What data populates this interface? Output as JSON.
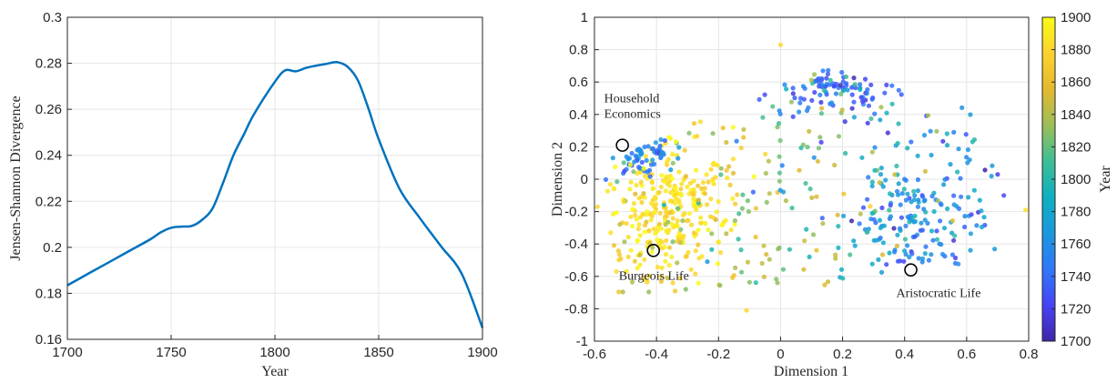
{
  "chart_data": [
    {
      "type": "line",
      "xlabel": "Year",
      "ylabel": "Jensen-Shannon Divergence",
      "xlim": [
        1700,
        1900
      ],
      "ylim": [
        0.16,
        0.3
      ],
      "xticks": [
        "1700",
        "1750",
        "1800",
        "1850",
        "1900"
      ],
      "yticks": [
        "0.16",
        "0.18",
        "0.2",
        "0.22",
        "0.24",
        "0.26",
        "0.28",
        "0.3"
      ],
      "grid": true,
      "color": "#0072BD",
      "series": [
        {
          "x": [
            1700,
            1710,
            1720,
            1730,
            1740,
            1745,
            1750,
            1755,
            1760,
            1765,
            1770,
            1775,
            1780,
            1785,
            1790,
            1800,
            1805,
            1810,
            1815,
            1820,
            1825,
            1830,
            1835,
            1840,
            1845,
            1850,
            1860,
            1870,
            1880,
            1890,
            1900
          ],
          "y": [
            0.1835,
            0.1885,
            0.1935,
            0.1985,
            0.2035,
            0.2065,
            0.2085,
            0.209,
            0.2093,
            0.212,
            0.217,
            0.228,
            0.24,
            0.249,
            0.258,
            0.272,
            0.277,
            0.2765,
            0.278,
            0.279,
            0.2798,
            0.2805,
            0.2785,
            0.2725,
            0.2605,
            0.247,
            0.2255,
            0.2125,
            0.2005,
            0.1885,
            0.165
          ]
        }
      ]
    },
    {
      "type": "scatter",
      "xlabel": "Dimension 1",
      "ylabel": "Dimension 2",
      "xlim": [
        -0.6,
        0.8
      ],
      "ylim": [
        -1,
        1
      ],
      "xticks": [
        "-0.6",
        "-0.4",
        "-0.2",
        "0",
        "0.2",
        "0.4",
        "0.6",
        "0.8"
      ],
      "yticks": [
        "-1",
        "-0.8",
        "-0.6",
        "-0.4",
        "-0.2",
        "0",
        "0.2",
        "0.4",
        "0.6",
        "0.8",
        "1"
      ],
      "grid": true,
      "colormap": "parula",
      "colorbar": {
        "label": "Year",
        "range": [
          1700,
          1900
        ],
        "ticks": [
          "1700",
          "1720",
          "1740",
          "1760",
          "1780",
          "1800",
          "1820",
          "1840",
          "1860",
          "1880",
          "1900"
        ]
      },
      "colormap_stops": [
        "#3e26a8",
        "#4743f6",
        "#2f78f9",
        "#1b97de",
        "#0eb0c1",
        "#3dbe96",
        "#9bbf59",
        "#e3b92e",
        "#fdd22e",
        "#f9fb15"
      ],
      "point_counts": {
        "burgeois_cluster": 260,
        "household_cluster": 80,
        "upper_right_cluster": 110,
        "aristocratic_cluster": 130,
        "scattered": 380
      },
      "cluster_centers": {
        "burgeois": {
          "x": -0.35,
          "y": -0.2,
          "year": 1885
        },
        "household": {
          "x": -0.45,
          "y": 0.15,
          "year": 1755
        },
        "top": {
          "x": 0.2,
          "y": 0.55,
          "year": 1735
        },
        "aristocratic": {
          "x": 0.42,
          "y": -0.3,
          "year": 1760
        }
      },
      "outlier_points": [
        {
          "x": 0.0,
          "y": 0.83,
          "year": 1880
        },
        {
          "x": -0.11,
          "y": -0.81,
          "year": 1880
        },
        {
          "x": 0.79,
          "y": -0.19,
          "year": 1885
        },
        {
          "x": -0.59,
          "y": -0.17,
          "year": 1880
        },
        {
          "x": 0.7,
          "y": 0.03,
          "year": 1720
        },
        {
          "x": 0.72,
          "y": -0.1,
          "year": 1725
        }
      ],
      "annotations": [
        {
          "label": "Household Economics",
          "x": -0.51,
          "y": 0.21
        },
        {
          "label": "Burgeois Life",
          "x": -0.41,
          "y": -0.44
        },
        {
          "label": "Aristocratic Life",
          "x": 0.42,
          "y": -0.56
        }
      ]
    }
  ]
}
